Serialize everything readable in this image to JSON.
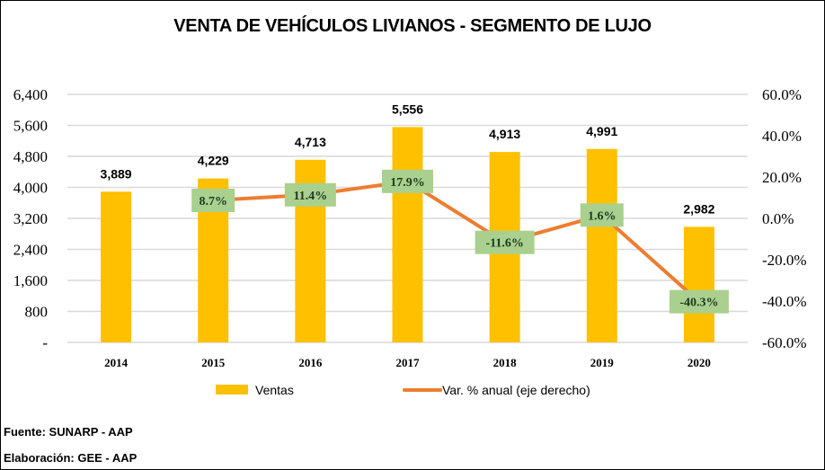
{
  "chart_data": {
    "type": "bar+line",
    "title": "VENTA DE VEHÍCULOS LIVIANOS - SEGMENTO DE LUJO",
    "categories": [
      "2014",
      "2015",
      "2016",
      "2017",
      "2018",
      "2019",
      "2020"
    ],
    "series": [
      {
        "name": "Ventas",
        "type": "bar",
        "axis": "left",
        "values": [
          3889,
          4229,
          4713,
          5556,
          4913,
          4991,
          2982
        ],
        "labels": [
          "3,889",
          "4,229",
          "4,713",
          "5,556",
          "4,913",
          "4,991",
          "2,982"
        ],
        "color": "#FFC000"
      },
      {
        "name": "Var. % anual (eje derecho)",
        "type": "line",
        "axis": "right",
        "values": [
          null,
          8.7,
          11.4,
          17.9,
          -11.6,
          1.6,
          -40.3
        ],
        "labels": [
          "",
          "8.7%",
          "11.4%",
          "17.9%",
          "-11.6%",
          "1.6%",
          "-40.3%"
        ],
        "color": "#ED7D31",
        "label_bg": "#A9D08E"
      }
    ],
    "left_axis": {
      "ylim": [
        0,
        6400
      ],
      "ticks": [
        "-",
        "800",
        "1,600",
        "2,400",
        "3,200",
        "4,000",
        "4,800",
        "5,600",
        "6,400"
      ]
    },
    "right_axis": {
      "ylim": [
        -60,
        60
      ],
      "ticks": [
        "-60.0%",
        "-40.0%",
        "-20.0%",
        "0.0%",
        "20.0%",
        "40.0%",
        "60.0%"
      ]
    },
    "grid": true,
    "legend": "bottom"
  },
  "footer": {
    "source": "Fuente: SUNARP - AAP",
    "elaboration": "Elaboración: GEE - AAP"
  }
}
